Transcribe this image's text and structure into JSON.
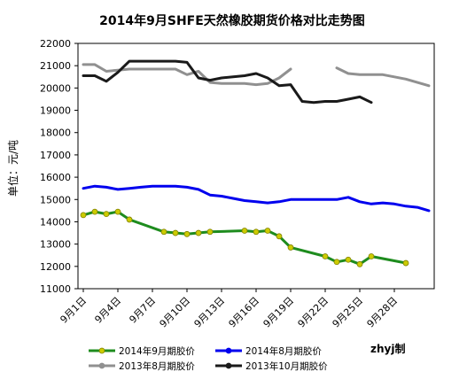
{
  "chart_data": {
    "type": "line",
    "title": "2014年9月SHFE天然橡胶期货价格对比走势图",
    "ylabel": "单位：元/吨",
    "xlabel": "",
    "ylim": [
      11000,
      22000
    ],
    "yticks": [
      11000,
      12000,
      13000,
      14000,
      15000,
      16000,
      17000,
      18000,
      19000,
      20000,
      21000,
      22000
    ],
    "x_range": [
      0,
      30
    ],
    "xtick_labels": [
      "9月1日",
      "9月4日",
      "9月7日",
      "9月10日",
      "9月13日",
      "9月16日",
      "9月19日",
      "9月22日",
      "9月25日",
      "9月28日"
    ],
    "xtick_positions": [
      0,
      3,
      6,
      9,
      12,
      15,
      18,
      21,
      24,
      27
    ],
    "grid": false,
    "legend_position": "bottom",
    "credit": "zhyj制",
    "series": [
      {
        "name": "2014年9月期胶价",
        "color": "#1e8c1e",
        "marker_color": "#cccc00",
        "x": [
          0,
          1,
          2,
          3,
          4,
          7,
          8,
          9,
          10,
          11,
          14,
          15,
          16,
          17,
          18,
          21,
          22,
          23,
          24,
          25,
          28
        ],
        "y": [
          14300,
          14450,
          14350,
          14450,
          14100,
          13550,
          13500,
          13450,
          13500,
          13550,
          13600,
          13550,
          13600,
          13350,
          12850,
          12450,
          12200,
          12300,
          12100,
          12450,
          12150
        ]
      },
      {
        "name": "2014年8月期胶价",
        "color": "#0000ee",
        "x": [
          0,
          1,
          2,
          3,
          4,
          5,
          6,
          7,
          8,
          9,
          10,
          11,
          12,
          13,
          14,
          15,
          16,
          17,
          18,
          19,
          20,
          21,
          22,
          23,
          24,
          25,
          26,
          27,
          28,
          29,
          30
        ],
        "y": [
          15500,
          15600,
          15550,
          15450,
          15500,
          15550,
          15600,
          15600,
          15600,
          15550,
          15450,
          15200,
          15150,
          15050,
          14950,
          14900,
          14850,
          14900,
          15000,
          15000,
          15000,
          15000,
          15000,
          15100,
          14900,
          14800,
          14850,
          14800,
          14700,
          14650,
          14500
        ]
      },
      {
        "name": "2013年8月期胶价",
        "color": "#909090",
        "x": [
          0,
          1,
          2,
          3,
          4,
          5,
          6,
          7,
          8,
          9,
          10,
          11,
          12,
          13,
          14,
          15,
          16,
          17,
          18,
          null,
          22,
          23,
          24,
          25,
          26,
          27,
          28,
          29,
          30
        ],
        "y": [
          21050,
          21050,
          20750,
          20800,
          20850,
          20850,
          20850,
          20850,
          20850,
          20600,
          20750,
          20250,
          20200,
          20200,
          20200,
          20150,
          20200,
          20450,
          20850,
          null,
          20900,
          20650,
          20600,
          20600,
          20600,
          20500,
          20400,
          20250,
          20100
        ]
      },
      {
        "name": "2013年10月期胶价",
        "color": "#1a1a1a",
        "x": [
          0,
          1,
          2,
          3,
          4,
          5,
          6,
          7,
          8,
          9,
          10,
          11,
          12,
          13,
          14,
          15,
          16,
          17,
          18,
          19,
          20,
          21,
          22,
          23,
          24,
          25
        ],
        "y": [
          20550,
          20550,
          20300,
          20700,
          21200,
          21200,
          21200,
          21200,
          21200,
          21150,
          20450,
          20350,
          20450,
          20500,
          20550,
          20650,
          20450,
          20100,
          20150,
          19400,
          19350,
          19400,
          19400,
          19500,
          19600,
          19350
        ]
      }
    ]
  }
}
